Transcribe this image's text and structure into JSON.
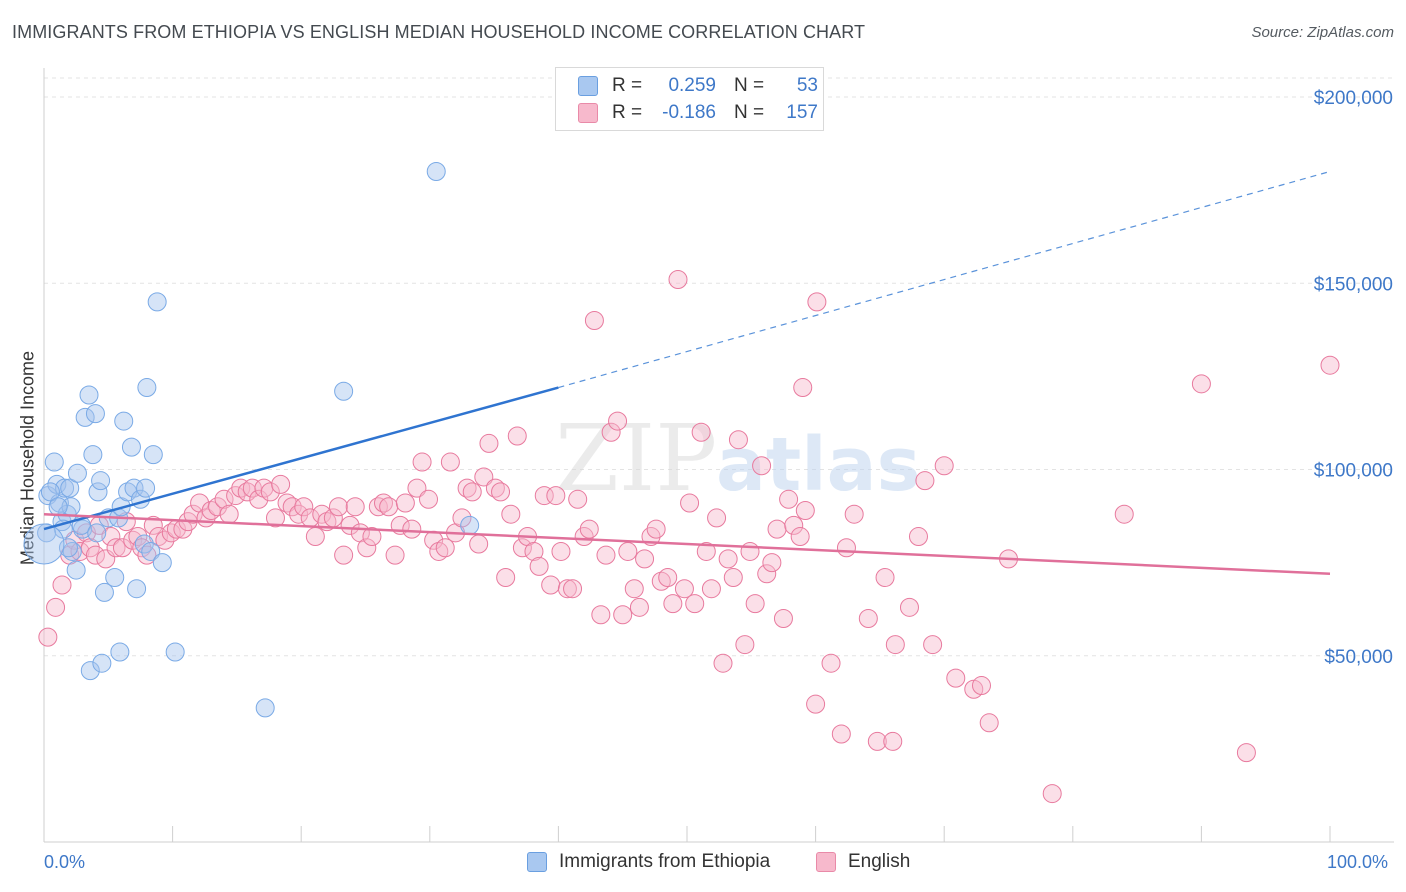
{
  "title": "IMMIGRANTS FROM ETHIOPIA VS ENGLISH MEDIAN HOUSEHOLD INCOME CORRELATION CHART",
  "source": "Source: ZipAtlas.com",
  "watermark": {
    "zip": "ZIP",
    "atlas": "atlas"
  },
  "legend_top": [
    {
      "r_label": "R =",
      "r_value": "0.259",
      "n_label": "N =",
      "n_value": "53",
      "color": "#a9c8f0",
      "border": "#6a9fe0"
    },
    {
      "r_label": "R =",
      "r_value": "-0.186",
      "n_label": "N =",
      "n_value": "157",
      "color": "#f7b9cc",
      "border": "#e98aa8"
    }
  ],
  "legend_bottom": [
    {
      "label": "Immigrants from Ethiopia",
      "color": "#a9c8f0",
      "border": "#6a9fe0"
    },
    {
      "label": "English",
      "color": "#f7b9cc",
      "border": "#e98aa8"
    }
  ],
  "x_axis": {
    "min_label": "0.0%",
    "max_label": "100.0%"
  },
  "chart_data": {
    "type": "scatter",
    "title": "IMMIGRANTS FROM ETHIOPIA VS ENGLISH MEDIAN HOUSEHOLD INCOME CORRELATION CHART",
    "xlabel": "",
    "ylabel": "Median Household Income",
    "xlim": [
      0,
      100
    ],
    "ylim": [
      0,
      205000
    ],
    "yticks": [
      50000,
      100000,
      150000,
      200000
    ],
    "ytick_labels": [
      "$50,000",
      "$100,000",
      "$150,000",
      "$200,000"
    ],
    "xticks": [
      0,
      10,
      20,
      30,
      40,
      50,
      60,
      70,
      80,
      90,
      100
    ],
    "grid": true,
    "legend_position": "top-center",
    "series": [
      {
        "name": "Immigrants from Ethiopia",
        "color": "#7aaae6",
        "fill": "rgba(164,196,238,0.45)",
        "trend": {
          "x0": 0,
          "y0": 84000,
          "x1": 40,
          "y1": 122000,
          "dash_to_x": 100,
          "dash_to_y": 180000
        },
        "points": [
          [
            0.3,
            93000
          ],
          [
            0.8,
            102000
          ],
          [
            1.0,
            96000
          ],
          [
            1.2,
            91000
          ],
          [
            1.4,
            86000
          ],
          [
            1.6,
            95000
          ],
          [
            1.8,
            88000
          ],
          [
            2.0,
            95000
          ],
          [
            2.2,
            78000
          ],
          [
            2.5,
            73000
          ],
          [
            2.6,
            99000
          ],
          [
            3.0,
            84000
          ],
          [
            3.2,
            114000
          ],
          [
            3.5,
            120000
          ],
          [
            3.8,
            104000
          ],
          [
            4.0,
            115000
          ],
          [
            4.2,
            94000
          ],
          [
            4.4,
            97000
          ],
          [
            4.7,
            67000
          ],
          [
            5.0,
            87000
          ],
          [
            5.5,
            71000
          ],
          [
            5.8,
            87000
          ],
          [
            6.0,
            90000
          ],
          [
            6.2,
            113000
          ],
          [
            6.5,
            94000
          ],
          [
            6.8,
            106000
          ],
          [
            7.0,
            95000
          ],
          [
            7.2,
            68000
          ],
          [
            7.5,
            92000
          ],
          [
            7.8,
            80000
          ],
          [
            7.9,
            95000
          ],
          [
            8.0,
            122000
          ],
          [
            8.3,
            78000
          ],
          [
            8.5,
            104000
          ],
          [
            8.8,
            145000
          ],
          [
            9.2,
            75000
          ],
          [
            10.2,
            51000
          ],
          [
            5.9,
            51000
          ],
          [
            3.6,
            46000
          ],
          [
            4.5,
            48000
          ],
          [
            17.2,
            36000
          ],
          [
            23.3,
            121000
          ],
          [
            30.5,
            180000
          ],
          [
            33.1,
            85000
          ],
          [
            1.5,
            84000
          ],
          [
            2.1,
            90000
          ],
          [
            0.5,
            94000
          ],
          [
            1.1,
            90000
          ],
          [
            0.2,
            83000
          ],
          [
            1.9,
            79000
          ],
          [
            2.9,
            85000
          ],
          [
            4.1,
            83000
          ],
          [
            0.0,
            80000
          ]
        ]
      },
      {
        "name": "English",
        "color": "#e87a9e",
        "fill": "rgba(247,185,204,0.45)",
        "trend": {
          "x0": 0,
          "y0": 88000,
          "x1": 100,
          "y1": 72000
        },
        "points": [
          [
            0.3,
            55000
          ],
          [
            0.9,
            63000
          ],
          [
            1.4,
            69000
          ],
          [
            2.0,
            77000
          ],
          [
            2.4,
            81000
          ],
          [
            2.8,
            78000
          ],
          [
            3.3,
            83000
          ],
          [
            3.6,
            79000
          ],
          [
            4.0,
            77000
          ],
          [
            4.3,
            85000
          ],
          [
            4.8,
            76000
          ],
          [
            5.2,
            82000
          ],
          [
            5.6,
            79000
          ],
          [
            6.1,
            79000
          ],
          [
            6.4,
            86000
          ],
          [
            6.9,
            81000
          ],
          [
            7.3,
            82000
          ],
          [
            7.6,
            79000
          ],
          [
            8.0,
            77000
          ],
          [
            8.5,
            85000
          ],
          [
            8.9,
            82000
          ],
          [
            9.4,
            81000
          ],
          [
            9.9,
            83000
          ],
          [
            10.3,
            84000
          ],
          [
            10.8,
            84000
          ],
          [
            11.2,
            86000
          ],
          [
            11.6,
            88000
          ],
          [
            12.1,
            91000
          ],
          [
            12.6,
            87000
          ],
          [
            13.0,
            89000
          ],
          [
            13.5,
            90000
          ],
          [
            14.0,
            92000
          ],
          [
            14.4,
            88000
          ],
          [
            14.9,
            93000
          ],
          [
            15.3,
            95000
          ],
          [
            15.8,
            94000
          ],
          [
            16.2,
            95000
          ],
          [
            16.7,
            92000
          ],
          [
            17.1,
            95000
          ],
          [
            17.6,
            94000
          ],
          [
            18.0,
            87000
          ],
          [
            18.4,
            96000
          ],
          [
            18.9,
            91000
          ],
          [
            19.3,
            90000
          ],
          [
            19.8,
            88000
          ],
          [
            20.2,
            90000
          ],
          [
            20.7,
            87000
          ],
          [
            21.1,
            82000
          ],
          [
            21.6,
            88000
          ],
          [
            22.0,
            86000
          ],
          [
            22.5,
            87000
          ],
          [
            22.9,
            90000
          ],
          [
            23.3,
            77000
          ],
          [
            23.8,
            85000
          ],
          [
            24.2,
            90000
          ],
          [
            24.6,
            83000
          ],
          [
            25.1,
            79000
          ],
          [
            25.5,
            82000
          ],
          [
            26.0,
            90000
          ],
          [
            26.4,
            91000
          ],
          [
            26.8,
            90000
          ],
          [
            27.3,
            77000
          ],
          [
            27.7,
            85000
          ],
          [
            28.1,
            91000
          ],
          [
            28.6,
            84000
          ],
          [
            29.0,
            95000
          ],
          [
            29.4,
            102000
          ],
          [
            29.9,
            92000
          ],
          [
            30.3,
            81000
          ],
          [
            30.7,
            78000
          ],
          [
            31.2,
            79000
          ],
          [
            31.6,
            102000
          ],
          [
            32.0,
            83000
          ],
          [
            32.5,
            87000
          ],
          [
            32.9,
            95000
          ],
          [
            33.3,
            94000
          ],
          [
            33.8,
            80000
          ],
          [
            34.2,
            98000
          ],
          [
            34.6,
            107000
          ],
          [
            35.1,
            95000
          ],
          [
            35.5,
            94000
          ],
          [
            35.9,
            71000
          ],
          [
            36.3,
            88000
          ],
          [
            36.8,
            109000
          ],
          [
            37.2,
            79000
          ],
          [
            37.6,
            82000
          ],
          [
            38.1,
            78000
          ],
          [
            38.5,
            74000
          ],
          [
            38.9,
            93000
          ],
          [
            39.4,
            69000
          ],
          [
            39.8,
            93000
          ],
          [
            40.2,
            78000
          ],
          [
            40.7,
            68000
          ],
          [
            41.1,
            68000
          ],
          [
            41.5,
            92000
          ],
          [
            42.0,
            82000
          ],
          [
            42.4,
            84000
          ],
          [
            42.8,
            140000
          ],
          [
            43.3,
            61000
          ],
          [
            43.7,
            77000
          ],
          [
            44.1,
            110000
          ],
          [
            44.6,
            113000
          ],
          [
            45.0,
            61000
          ],
          [
            45.4,
            78000
          ],
          [
            45.9,
            68000
          ],
          [
            46.3,
            63000
          ],
          [
            46.7,
            76000
          ],
          [
            47.2,
            82000
          ],
          [
            47.6,
            84000
          ],
          [
            48.0,
            70000
          ],
          [
            48.5,
            71000
          ],
          [
            48.9,
            64000
          ],
          [
            49.3,
            151000
          ],
          [
            49.8,
            68000
          ],
          [
            50.2,
            91000
          ],
          [
            50.6,
            64000
          ],
          [
            51.1,
            110000
          ],
          [
            51.5,
            78000
          ],
          [
            51.9,
            68000
          ],
          [
            52.3,
            87000
          ],
          [
            52.8,
            48000
          ],
          [
            53.2,
            76000
          ],
          [
            53.6,
            71000
          ],
          [
            54.0,
            108000
          ],
          [
            54.5,
            53000
          ],
          [
            54.9,
            78000
          ],
          [
            55.3,
            64000
          ],
          [
            55.8,
            101000
          ],
          [
            56.2,
            72000
          ],
          [
            56.6,
            75000
          ],
          [
            57.0,
            84000
          ],
          [
            57.5,
            60000
          ],
          [
            57.9,
            92000
          ],
          [
            58.3,
            85000
          ],
          [
            58.8,
            82000
          ],
          [
            59.2,
            89000
          ],
          [
            60.0,
            37000
          ],
          [
            61.2,
            48000
          ],
          [
            62.4,
            79000
          ],
          [
            63.0,
            88000
          ],
          [
            64.1,
            60000
          ],
          [
            64.8,
            27000
          ],
          [
            65.4,
            71000
          ],
          [
            66.2,
            53000
          ],
          [
            67.3,
            63000
          ],
          [
            68.0,
            82000
          ],
          [
            69.1,
            53000
          ],
          [
            70.0,
            101000
          ],
          [
            70.9,
            44000
          ],
          [
            72.3,
            41000
          ],
          [
            73.5,
            32000
          ],
          [
            75.0,
            76000
          ],
          [
            84.0,
            88000
          ],
          [
            90.0,
            123000
          ],
          [
            100.0,
            128000
          ],
          [
            60.1,
            145000
          ],
          [
            59.0,
            122000
          ],
          [
            78.4,
            13000
          ],
          [
            93.5,
            24000
          ],
          [
            62.0,
            29000
          ],
          [
            66.0,
            27000
          ],
          [
            72.9,
            42000
          ],
          [
            68.5,
            97000
          ]
        ]
      }
    ]
  }
}
